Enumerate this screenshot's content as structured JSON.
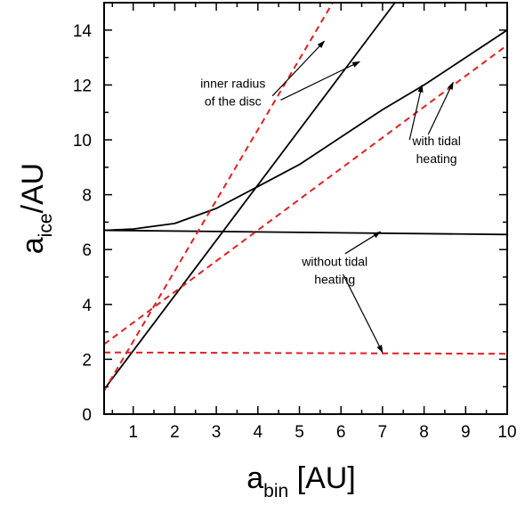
{
  "chart_data": {
    "type": "line",
    "xlabel": {
      "main": "a",
      "sub": "bin",
      "rest": " [AU]"
    },
    "ylabel": {
      "main": "a",
      "sub": "ice",
      "rest": "/AU"
    },
    "xlim": [
      0.3,
      10
    ],
    "ylim": [
      0,
      15
    ],
    "xticks": [
      1,
      2,
      3,
      4,
      5,
      6,
      7,
      8,
      9,
      10
    ],
    "yticks": [
      0,
      2,
      4,
      6,
      8,
      10,
      12,
      14
    ],
    "x_minor_step": 0.5,
    "y_minor_step": 1,
    "grid": false,
    "series": [
      {
        "style": "solid",
        "color": "#000000",
        "x": [
          0.3,
          7.3
        ],
        "y": [
          0.9,
          15
        ]
      },
      {
        "style": "solid",
        "color": "#000000",
        "x": [
          0.3,
          1.0,
          2.0,
          3.0,
          4.0,
          5.0,
          6.0,
          7.0,
          8.0,
          9.0,
          10.0
        ],
        "y": [
          6.7,
          6.75,
          6.95,
          7.5,
          8.3,
          9.1,
          10.1,
          11.1,
          12.0,
          13.0,
          14.0
        ]
      },
      {
        "style": "solid",
        "color": "#000000",
        "x": [
          0.3,
          10.0
        ],
        "y": [
          6.7,
          6.55
        ]
      },
      {
        "style": "dashed",
        "color": "#e02020",
        "x": [
          0.3,
          5.8
        ],
        "y": [
          0.85,
          15
        ]
      },
      {
        "style": "dashed",
        "color": "#e02020",
        "x": [
          0.3,
          10.0
        ],
        "y": [
          2.55,
          13.45
        ]
      },
      {
        "style": "dashed",
        "color": "#e02020",
        "x": [
          0.3,
          10.0
        ],
        "y": [
          2.25,
          2.2
        ]
      }
    ],
    "annotations": [
      {
        "lines": [
          "inner radius",
          "of the disc"
        ],
        "text_at": [
          3.4,
          11.9
        ],
        "arrows": [
          {
            "from": [
              4.35,
              11.6
            ],
            "to": [
              5.6,
              13.6
            ]
          },
          {
            "from": [
              4.55,
              11.45
            ],
            "to": [
              6.45,
              12.85
            ]
          }
        ]
      },
      {
        "lines": [
          "with tidal",
          "heating"
        ],
        "text_at": [
          8.3,
          9.8
        ],
        "arrows": [
          {
            "from": [
              7.65,
              10.0
            ],
            "to": [
              7.95,
              12.0
            ]
          },
          {
            "from": [
              8.1,
              10.2
            ],
            "to": [
              8.7,
              12.1
            ]
          }
        ]
      },
      {
        "lines": [
          "without tidal",
          "heating"
        ],
        "text_at": [
          5.85,
          5.4
        ],
        "arrows": [
          {
            "from": [
              6.1,
              5.85
            ],
            "to": [
              6.95,
              6.65
            ]
          },
          {
            "from": [
              6.05,
              5.1
            ],
            "to": [
              7.0,
              2.25
            ]
          }
        ]
      }
    ]
  }
}
